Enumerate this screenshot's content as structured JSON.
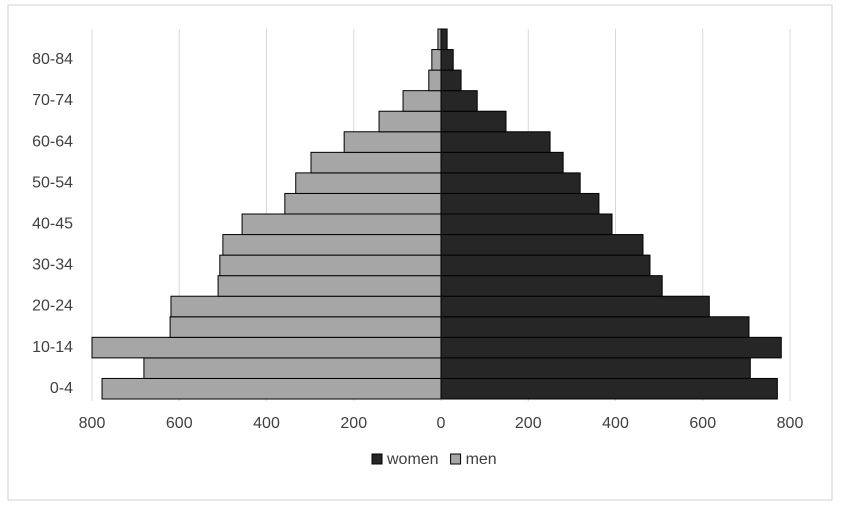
{
  "chart_data": {
    "type": "bar",
    "orientation": "horizontal",
    "stacked": false,
    "categories": [
      "0-4",
      null,
      "10-14",
      null,
      "20-24",
      null,
      "30-34",
      null,
      "40-45",
      null,
      "50-54",
      null,
      "60-64",
      null,
      "70-74",
      null,
      "80-84",
      null
    ],
    "series": [
      {
        "name": "women",
        "color": "#262626",
        "values": [
          771,
          709,
          780,
          706,
          615,
          507,
          479,
          463,
          392,
          362,
          319,
          280,
          250,
          149,
          83,
          46,
          28,
          14
        ]
      },
      {
        "name": "men",
        "color": "#a6a6a6",
        "values": [
          -777,
          -681,
          -800,
          -621,
          -619,
          -511,
          -507,
          -500,
          -456,
          -358,
          -333,
          -298,
          -222,
          -142,
          -87,
          -28,
          -21,
          -7
        ]
      }
    ],
    "xlim": [
      -800,
      800
    ],
    "xticks": [
      {
        "value": -800,
        "label": "800"
      },
      {
        "value": -600,
        "label": "600"
      },
      {
        "value": -400,
        "label": "400"
      },
      {
        "value": -200,
        "label": "200"
      },
      0,
      200,
      400,
      600,
      800
    ],
    "grid": true,
    "legend": "bottom"
  }
}
